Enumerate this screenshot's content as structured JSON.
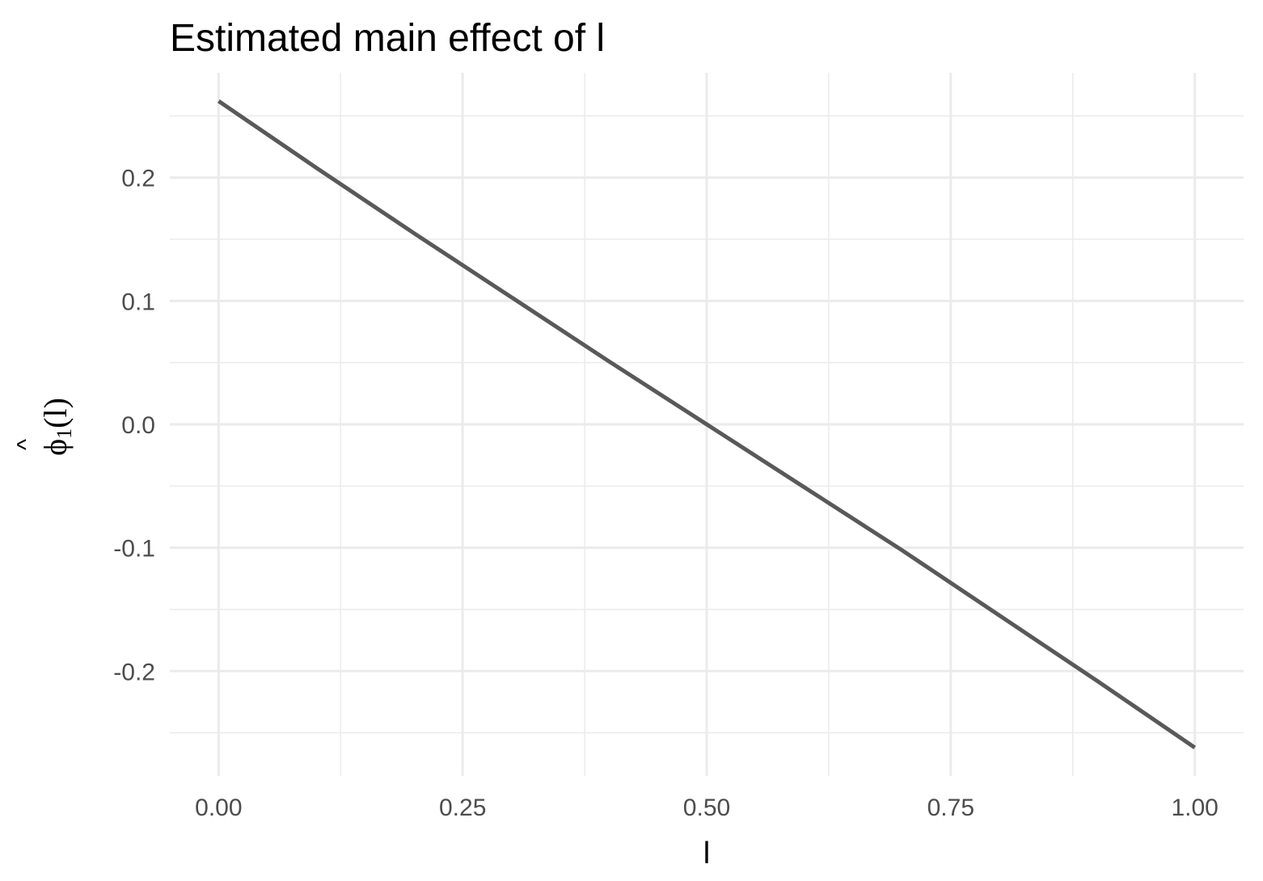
{
  "chart_data": {
    "type": "line",
    "title": "Estimated main effect of l",
    "xlabel": "l",
    "ylabel": {
      "hat": "^",
      "symbol": "ϕ",
      "subscript": "1",
      "argument": "(l)"
    },
    "xlim": [
      -0.05,
      1.05
    ],
    "ylim": [
      -0.285,
      0.285
    ],
    "x_ticks": [
      "0.00",
      "0.25",
      "0.50",
      "0.75",
      "1.00"
    ],
    "x_tick_values": [
      0,
      0.25,
      0.5,
      0.75,
      1.0
    ],
    "y_ticks": [
      "-0.2",
      "-0.1",
      "0.0",
      "0.1",
      "0.2"
    ],
    "y_tick_values": [
      -0.2,
      -0.1,
      0.0,
      0.1,
      0.2
    ],
    "grid": true,
    "legend": "none",
    "series": [
      {
        "color": "#595959",
        "x": [
          0.0,
          0.1,
          0.2,
          0.3,
          0.4,
          0.5,
          0.6,
          0.7,
          0.8,
          0.9,
          1.0
        ],
        "y": [
          0.262,
          0.208,
          0.155,
          0.103,
          0.051,
          0.0,
          -0.051,
          -0.102,
          -0.155,
          -0.208,
          -0.262
        ]
      }
    ]
  }
}
